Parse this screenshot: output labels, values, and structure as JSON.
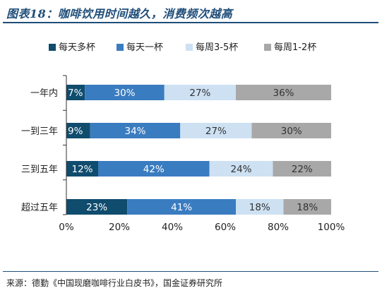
{
  "figure": {
    "title": "图表18：咖啡饮用时间越久，消费频次越高",
    "source": "来源：德勤《中国现磨咖啡行业白皮书》，国金证券研究所"
  },
  "colors": {
    "title_rule": "#1f4e79",
    "axis": "#333333",
    "series": [
      "#0f4c6e",
      "#3a7cc0",
      "#cde1f3",
      "#a8a8a8"
    ],
    "label_text": [
      "#ffffff",
      "#ffffff",
      "#333333",
      "#333333"
    ]
  },
  "chart_data": {
    "type": "bar",
    "orientation": "horizontal",
    "stacked": true,
    "categories": [
      "一年内",
      "一到三年",
      "三到五年",
      "超过五年"
    ],
    "series": [
      {
        "name": "每天多杯",
        "values": [
          7,
          9,
          12,
          23
        ]
      },
      {
        "name": "每天一杯",
        "values": [
          30,
          34,
          42,
          41
        ]
      },
      {
        "name": "每周3-5杯",
        "values": [
          27,
          27,
          24,
          18
        ]
      },
      {
        "name": "每周1-2杯",
        "values": [
          36,
          30,
          22,
          18
        ]
      }
    ],
    "value_suffix": "%",
    "xlim": [
      0,
      100
    ],
    "xticks": [
      "0%",
      "20%",
      "40%",
      "60%",
      "80%",
      "100%"
    ],
    "grid": false,
    "legend": "top"
  }
}
